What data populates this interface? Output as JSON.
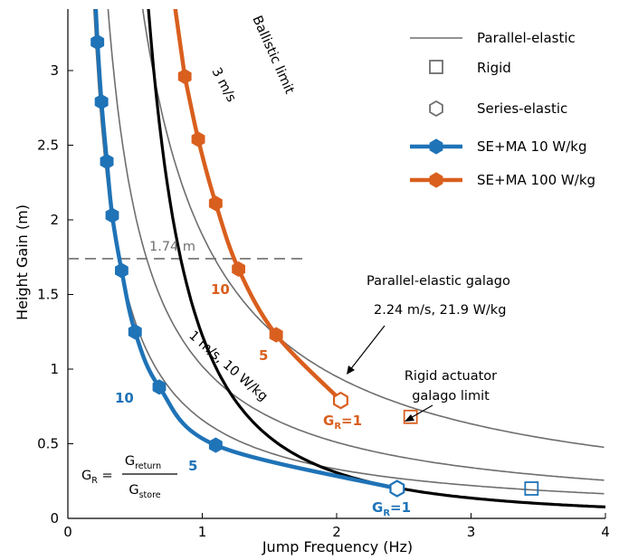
{
  "chart_data": {
    "type": "line",
    "xlabel": "Jump Frequency (Hz)",
    "ylabel": "Height Gain (m)",
    "xlim": [
      0,
      4
    ],
    "ylim": [
      0,
      3.4
    ],
    "x_ticks": [
      "0",
      "1",
      "2",
      "3",
      "4"
    ],
    "y_ticks": [
      "0",
      "0.5",
      "1",
      "1.5",
      "2",
      "2.5",
      "3"
    ],
    "grid": false,
    "legend_position": "top-right",
    "legend": [
      {
        "label": "Parallel-elastic",
        "marker": "line",
        "color": "#6e6e6e"
      },
      {
        "label": "Rigid",
        "marker": "square",
        "color": "#6e6e6e"
      },
      {
        "label": "Series-elastic",
        "marker": "hexagon",
        "color": "#6e6e6e"
      },
      {
        "label": "SE+MA 10 W/kg",
        "marker": "line-hexagon",
        "color": "#1f73b7"
      },
      {
        "label": "SE+MA 100 W/kg",
        "marker": "line-hexagon",
        "color": "#d95f1e"
      }
    ],
    "ballistic_limit": {
      "label": "Ballistic limit",
      "color": "#000000",
      "formula": "h = g / (8 f^2)",
      "x": [
        1.0,
        1.5,
        2.0,
        2.5,
        3.0,
        3.5,
        4.0
      ],
      "y": [
        1.226,
        0.545,
        0.307,
        0.196,
        0.136,
        0.1,
        0.077
      ]
    },
    "parallel_elastic_curves": [
      {
        "label": "3 m/s",
        "formula": "v=3.0 m/s",
        "color": "#6e6e6e"
      },
      {
        "label": "",
        "formula": "v=2.24 m/s",
        "color": "#6e6e6e"
      },
      {
        "label": "1 m/s, 10 W/kg",
        "formula": "v=1.0 m/s",
        "color": "#6e6e6e"
      }
    ],
    "series": [
      {
        "name": "SE+MA 10 W/kg",
        "color": "#1f73b7",
        "x": [
          0.22,
          0.25,
          0.29,
          0.33,
          0.4,
          0.5,
          0.68,
          1.1,
          2.45
        ],
        "y": [
          3.19,
          2.79,
          2.39,
          2.03,
          1.66,
          1.25,
          0.88,
          0.49,
          0.2
        ],
        "filled_markers": [
          0,
          1,
          2,
          3,
          4,
          5,
          6,
          7
        ],
        "open_marker_index": 8,
        "labels": [
          {
            "text": "10",
            "at_index": 6
          },
          {
            "text": "5",
            "at_index": 7
          },
          {
            "text": "G",
            "sub": "R",
            "suffix": "=1",
            "at_index": 8
          }
        ]
      },
      {
        "name": "SE+MA 100 W/kg",
        "color": "#d95f1e",
        "x": [
          0.87,
          0.97,
          1.1,
          1.27,
          1.55,
          2.03
        ],
        "y": [
          2.96,
          2.54,
          2.11,
          1.67,
          1.23,
          0.79
        ],
        "filled_markers": [
          0,
          1,
          2,
          3,
          4
        ],
        "open_marker_index": 5,
        "labels": [
          {
            "text": "10",
            "at_index": 3
          },
          {
            "text": "5",
            "at_index": 4
          },
          {
            "text": "G",
            "sub": "R",
            "suffix": "=1",
            "at_index": 5
          }
        ]
      }
    ],
    "rigid_points": [
      {
        "x": 2.55,
        "y": 0.68,
        "color": "#d95f1e"
      },
      {
        "x": 3.45,
        "y": 0.2,
        "color": "#1f73b7"
      }
    ],
    "reference_line": {
      "y": 1.74,
      "label": "1.74 m",
      "style": "dashed",
      "color": "#6e6e6e"
    },
    "annotations": [
      {
        "text": "Parallel-elastic galago"
      },
      {
        "text": "2.24 m/s, 21.9 W/kg"
      },
      {
        "text": "Rigid actuator"
      },
      {
        "text": "galago limit"
      }
    ],
    "equation": {
      "lhs": "G",
      "lhs_sub": "R",
      "numerator": "G",
      "numerator_sub": "return",
      "denominator": "G",
      "denominator_sub": "store"
    }
  }
}
